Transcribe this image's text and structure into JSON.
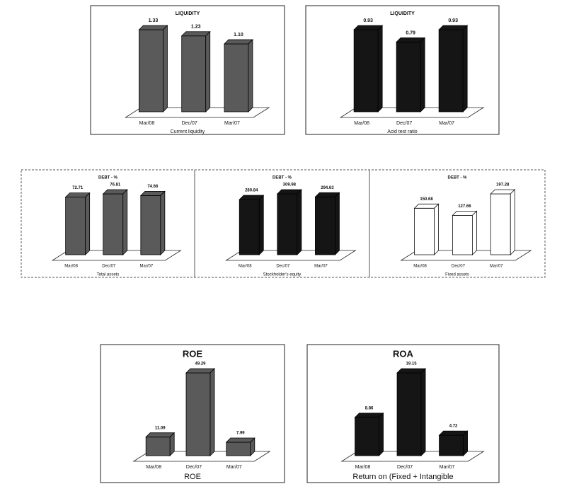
{
  "chart_data": [
    {
      "type": "bar3d",
      "title": "LIQUIDITY",
      "categories": [
        "Mar/08",
        "Dec/07",
        "Mar/07"
      ],
      "values": [
        1.33,
        1.23,
        1.1
      ],
      "value_labels": [
        "1.33",
        "1.23",
        "1.10"
      ],
      "xlabel": "Current liquidity",
      "color": "#5a5a5a"
    },
    {
      "type": "bar3d",
      "title": "LIQUIDITY",
      "categories": [
        "Mar/08",
        "Dec/07",
        "Mar/07"
      ],
      "values": [
        0.93,
        0.79,
        0.93
      ],
      "xlabel": "Acid test ratio",
      "color": "#151515"
    },
    {
      "type": "bar3d",
      "title": "DEBT - %",
      "categories": [
        "Mar/08",
        "Dec/07",
        "Mar/07"
      ],
      "values": [
        72.71,
        76.81,
        74.66
      ],
      "xlabel": "Total assets",
      "color": "#5a5a5a"
    },
    {
      "type": "bar3d",
      "title": "DEBT - %",
      "categories": [
        "Mar/08",
        "Dec/07",
        "Mar/07"
      ],
      "values": [
        280.84,
        309.98,
        294.63
      ],
      "xlabel": "Stockholder's equity",
      "color": "#151515"
    },
    {
      "type": "bar3d",
      "title": "DEBT - %",
      "categories": [
        "Mar/08",
        "Dec/07",
        "Mar/07"
      ],
      "values": [
        150.68,
        127.66,
        197.28
      ],
      "xlabel": "Fixed assets",
      "color": "#ffffff"
    },
    {
      "type": "bar3d",
      "title": "ROE",
      "categories": [
        "Mar/08",
        "Dec/07",
        "Mar/07"
      ],
      "values": [
        11.09,
        49.29,
        7.99
      ],
      "xlabel": "ROE",
      "color": "#5a5a5a"
    },
    {
      "type": "bar3d",
      "title": "ROA",
      "categories": [
        "Mar/08",
        "Dec/07",
        "Mar/07"
      ],
      "values": [
        8.86,
        19.15,
        4.72
      ],
      "xlabel": "Return on (Fixed + Intangible",
      "color": "#151515"
    }
  ]
}
